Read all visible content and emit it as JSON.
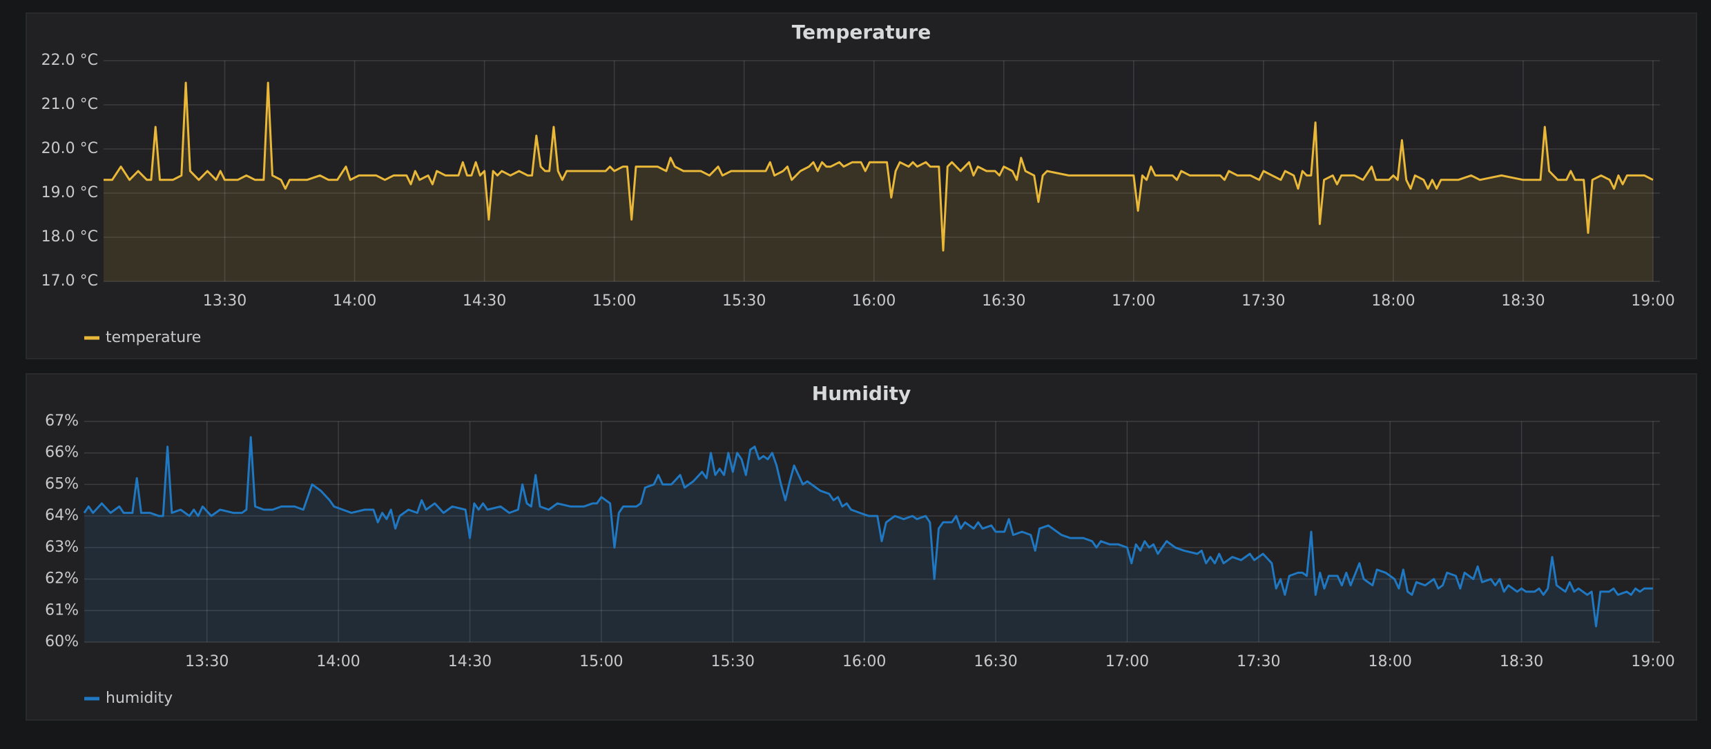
{
  "chart_data": [
    {
      "type": "line",
      "title": "Temperature",
      "grid": true,
      "fill": true,
      "legend": "bottom-left",
      "xlim": [
        "13:02",
        "19:00"
      ],
      "xticks": [
        "13:30",
        "14:00",
        "14:30",
        "15:00",
        "15:30",
        "16:00",
        "16:30",
        "17:00",
        "17:30",
        "18:00",
        "18:30",
        "19:00"
      ],
      "ylim": [
        17,
        22
      ],
      "yticks": [
        {
          "value": 17,
          "label": "17.0 °C"
        },
        {
          "value": 18,
          "label": "18.0 °C"
        },
        {
          "value": 19,
          "label": "19.0 °C"
        },
        {
          "value": 20,
          "label": "20.0 °C"
        },
        {
          "value": 21,
          "label": "21.0 °C"
        },
        {
          "value": 22,
          "label": "22.0 °C"
        }
      ],
      "x": [
        "13:02",
        "13:04",
        "13:06",
        "13:08",
        "13:10",
        "13:12",
        "13:13",
        "13:14",
        "13:15",
        "13:18",
        "13:20",
        "13:21",
        "13:22",
        "13:24",
        "13:26",
        "13:28",
        "13:29",
        "13:30",
        "13:33",
        "13:35",
        "13:37",
        "13:39",
        "13:40",
        "13:41",
        "13:43",
        "13:44",
        "13:45",
        "13:49",
        "13:52",
        "13:54",
        "13:56",
        "13:58",
        "13:59",
        "14:01",
        "14:05",
        "14:07",
        "14:09",
        "14:12",
        "14:13",
        "14:14",
        "14:15",
        "14:17",
        "14:18",
        "14:19",
        "14:21",
        "14:24",
        "14:25",
        "14:26",
        "14:27",
        "14:28",
        "14:29",
        "14:30",
        "14:31",
        "14:32",
        "14:33",
        "14:34",
        "14:36",
        "14:38",
        "14:40",
        "14:41",
        "14:42",
        "14:43",
        "14:44",
        "14:45",
        "14:46",
        "14:47",
        "14:48",
        "14:49",
        "14:52",
        "14:55",
        "14:58",
        "14:59",
        "15:00",
        "15:02",
        "15:03",
        "15:04",
        "15:05",
        "15:10",
        "15:12",
        "15:13",
        "15:14",
        "15:16",
        "15:20",
        "15:22",
        "15:24",
        "15:25",
        "15:27",
        "15:30",
        "15:35",
        "15:36",
        "15:37",
        "15:39",
        "15:40",
        "15:41",
        "15:43",
        "15:45",
        "15:46",
        "15:47",
        "15:48",
        "15:49",
        "15:50",
        "15:52",
        "15:53",
        "15:55",
        "15:57",
        "15:58",
        "15:59",
        "16:03",
        "16:04",
        "16:05",
        "16:06",
        "16:08",
        "16:09",
        "16:10",
        "16:12",
        "16:13",
        "16:15",
        "16:16",
        "16:17",
        "16:18",
        "16:20",
        "16:22",
        "16:23",
        "16:24",
        "16:26",
        "16:28",
        "16:29",
        "16:30",
        "16:32",
        "16:33",
        "16:34",
        "16:35",
        "16:37",
        "16:38",
        "16:39",
        "16:40",
        "16:45",
        "16:50",
        "16:58",
        "17:00",
        "17:01",
        "17:02",
        "17:03",
        "17:04",
        "17:05",
        "17:09",
        "17:10",
        "17:11",
        "17:13",
        "17:20",
        "17:21",
        "17:22",
        "17:24",
        "17:27",
        "17:29",
        "17:30",
        "17:32",
        "17:34",
        "17:35",
        "17:37",
        "17:38",
        "17:39",
        "17:40",
        "17:41",
        "17:42",
        "17:43",
        "17:44",
        "17:46",
        "17:47",
        "17:48",
        "17:51",
        "17:53",
        "17:55",
        "17:56",
        "17:59",
        "18:00",
        "18:01",
        "18:02",
        "18:03",
        "18:04",
        "18:05",
        "18:07",
        "18:08",
        "18:09",
        "18:10",
        "18:11",
        "18:15",
        "18:18",
        "18:20",
        "18:25",
        "18:30",
        "18:34",
        "18:35",
        "18:36",
        "18:38",
        "18:40",
        "18:41",
        "18:42",
        "18:44",
        "18:45",
        "18:46",
        "18:48",
        "18:50",
        "18:51",
        "18:52",
        "18:53",
        "18:54",
        "18:56",
        "18:58",
        "19:00"
      ],
      "series": [
        {
          "name": "temperature",
          "color": "#eab839",
          "values": [
            19.3,
            19.3,
            19.6,
            19.3,
            19.5,
            19.3,
            19.3,
            20.5,
            19.3,
            19.3,
            19.4,
            21.5,
            19.5,
            19.3,
            19.5,
            19.3,
            19.5,
            19.3,
            19.3,
            19.4,
            19.3,
            19.3,
            21.5,
            19.4,
            19.3,
            19.1,
            19.3,
            19.3,
            19.4,
            19.3,
            19.3,
            19.6,
            19.3,
            19.4,
            19.4,
            19.3,
            19.4,
            19.4,
            19.2,
            19.5,
            19.3,
            19.4,
            19.2,
            19.5,
            19.4,
            19.4,
            19.7,
            19.4,
            19.4,
            19.7,
            19.4,
            19.5,
            18.4,
            19.5,
            19.4,
            19.5,
            19.4,
            19.5,
            19.4,
            19.4,
            20.3,
            19.6,
            19.5,
            19.5,
            20.5,
            19.5,
            19.3,
            19.5,
            19.5,
            19.5,
            19.5,
            19.6,
            19.5,
            19.6,
            19.6,
            18.4,
            19.6,
            19.6,
            19.5,
            19.8,
            19.6,
            19.5,
            19.5,
            19.4,
            19.6,
            19.4,
            19.5,
            19.5,
            19.5,
            19.7,
            19.4,
            19.5,
            19.6,
            19.3,
            19.5,
            19.6,
            19.7,
            19.5,
            19.7,
            19.6,
            19.6,
            19.7,
            19.6,
            19.7,
            19.7,
            19.5,
            19.7,
            19.7,
            18.9,
            19.5,
            19.7,
            19.6,
            19.7,
            19.6,
            19.7,
            19.6,
            19.6,
            17.7,
            19.6,
            19.7,
            19.5,
            19.7,
            19.4,
            19.6,
            19.5,
            19.5,
            19.4,
            19.6,
            19.5,
            19.3,
            19.8,
            19.5,
            19.4,
            18.8,
            19.4,
            19.5,
            19.4,
            19.4,
            19.4,
            19.4,
            18.6,
            19.4,
            19.3,
            19.6,
            19.4,
            19.4,
            19.3,
            19.5,
            19.4,
            19.4,
            19.3,
            19.5,
            19.4,
            19.4,
            19.3,
            19.5,
            19.4,
            19.3,
            19.5,
            19.4,
            19.1,
            19.5,
            19.4,
            19.4,
            20.6,
            18.3,
            19.3,
            19.4,
            19.2,
            19.4,
            19.4,
            19.3,
            19.6,
            19.3,
            19.3,
            19.4,
            19.3,
            20.2,
            19.3,
            19.1,
            19.4,
            19.3,
            19.1,
            19.3,
            19.1,
            19.3,
            19.3,
            19.4,
            19.3,
            19.4,
            19.3,
            19.3,
            20.5,
            19.5,
            19.3,
            19.3,
            19.5,
            19.3,
            19.3,
            18.1,
            19.3,
            19.4,
            19.3,
            19.1,
            19.4,
            19.2,
            19.4,
            19.4,
            19.4,
            19.3
          ]
        }
      ]
    },
    {
      "type": "line",
      "title": "Humidity",
      "grid": true,
      "fill": true,
      "legend": "bottom-left",
      "xlim": [
        "13:02",
        "19:00"
      ],
      "xticks": [
        "13:30",
        "14:00",
        "14:30",
        "15:00",
        "15:30",
        "16:00",
        "16:30",
        "17:00",
        "17:30",
        "18:00",
        "18:30",
        "19:00"
      ],
      "ylim": [
        60,
        67
      ],
      "yticks": [
        {
          "value": 60,
          "label": "60%"
        },
        {
          "value": 61,
          "label": "61%"
        },
        {
          "value": 62,
          "label": "62%"
        },
        {
          "value": 63,
          "label": "63%"
        },
        {
          "value": 64,
          "label": "64%"
        },
        {
          "value": 65,
          "label": "65%"
        },
        {
          "value": 66,
          "label": "66%"
        },
        {
          "value": 67,
          "label": "67%"
        }
      ],
      "x": [
        "13:02",
        "13:03",
        "13:04",
        "13:06",
        "13:08",
        "13:10",
        "13:11",
        "13:13",
        "13:14",
        "13:15",
        "13:17",
        "13:19",
        "13:20",
        "13:21",
        "13:22",
        "13:24",
        "13:26",
        "13:27",
        "13:28",
        "13:29",
        "13:31",
        "13:33",
        "13:36",
        "13:38",
        "13:39",
        "13:40",
        "13:41",
        "13:43",
        "13:45",
        "13:47",
        "13:50",
        "13:52",
        "13:54",
        "13:56",
        "13:58",
        "13:59",
        "14:03",
        "14:06",
        "14:08",
        "14:09",
        "14:10",
        "14:11",
        "14:12",
        "14:13",
        "14:14",
        "14:16",
        "14:18",
        "14:19",
        "14:20",
        "14:22",
        "14:24",
        "14:26",
        "14:29",
        "14:30",
        "14:31",
        "14:32",
        "14:33",
        "14:34",
        "14:37",
        "14:39",
        "14:41",
        "14:42",
        "14:43",
        "14:44",
        "14:45",
        "14:46",
        "14:48",
        "14:50",
        "14:53",
        "14:56",
        "14:58",
        "14:59",
        "15:00",
        "15:02",
        "15:03",
        "15:04",
        "15:05",
        "15:08",
        "15:09",
        "15:10",
        "15:12",
        "15:13",
        "15:14",
        "15:16",
        "15:18",
        "15:19",
        "15:21",
        "15:23",
        "15:24",
        "15:25",
        "15:26",
        "15:27",
        "15:28",
        "15:29",
        "15:30",
        "15:31",
        "15:32",
        "15:33",
        "15:34",
        "15:35",
        "15:36",
        "15:37",
        "15:38",
        "15:39",
        "15:40",
        "15:41",
        "15:42",
        "15:43",
        "15:44",
        "15:45",
        "15:46",
        "15:47",
        "15:49",
        "15:50",
        "15:52",
        "15:53",
        "15:54",
        "15:55",
        "15:56",
        "15:57",
        "15:59",
        "16:01",
        "16:03",
        "16:04",
        "16:05",
        "16:07",
        "16:09",
        "16:11",
        "16:12",
        "16:14",
        "16:15",
        "16:16",
        "16:17",
        "16:18",
        "16:20",
        "16:21",
        "16:22",
        "16:23",
        "16:25",
        "16:26",
        "16:27",
        "16:29",
        "16:30",
        "16:32",
        "16:33",
        "16:34",
        "16:36",
        "16:38",
        "16:39",
        "16:40",
        "16:42",
        "16:44",
        "16:45",
        "16:47",
        "16:50",
        "16:52",
        "16:53",
        "16:54",
        "16:56",
        "16:58",
        "17:00",
        "17:01",
        "17:02",
        "17:03",
        "17:04",
        "17:05",
        "17:06",
        "17:07",
        "17:08",
        "17:09",
        "17:11",
        "17:13",
        "17:16",
        "17:17",
        "17:18",
        "17:19",
        "17:20",
        "17:21",
        "17:22",
        "17:24",
        "17:26",
        "17:28",
        "17:29",
        "17:31",
        "17:33",
        "17:34",
        "17:35",
        "17:36",
        "17:37",
        "17:39",
        "17:40",
        "17:41",
        "17:42",
        "17:43",
        "17:44",
        "17:45",
        "17:46",
        "17:48",
        "17:49",
        "17:50",
        "17:51",
        "17:53",
        "17:54",
        "17:56",
        "17:57",
        "17:59",
        "18:01",
        "18:02",
        "18:03",
        "18:04",
        "18:05",
        "18:06",
        "18:08",
        "18:10",
        "18:11",
        "18:12",
        "18:13",
        "18:15",
        "18:16",
        "18:17",
        "18:19",
        "18:20",
        "18:21",
        "18:23",
        "18:24",
        "18:25",
        "18:26",
        "18:27",
        "18:29",
        "18:30",
        "18:31",
        "18:33",
        "18:34",
        "18:35",
        "18:36",
        "18:37",
        "18:38",
        "18:39",
        "18:40",
        "18:41",
        "18:42",
        "18:43",
        "18:45",
        "18:46",
        "18:47",
        "18:48",
        "18:50",
        "18:51",
        "18:52",
        "18:54",
        "18:55",
        "18:56",
        "18:57",
        "18:58",
        "19:00"
      ],
      "series": [
        {
          "name": "humidity",
          "color": "#1f78c1",
          "values": [
            64.1,
            64.3,
            64.1,
            64.4,
            64.1,
            64.3,
            64.1,
            64.1,
            65.2,
            64.1,
            64.1,
            64.0,
            64.0,
            66.2,
            64.1,
            64.2,
            64.0,
            64.2,
            64.0,
            64.3,
            64.0,
            64.2,
            64.1,
            64.1,
            64.2,
            66.5,
            64.3,
            64.2,
            64.2,
            64.3,
            64.3,
            64.2,
            65.0,
            64.8,
            64.5,
            64.3,
            64.1,
            64.2,
            64.2,
            63.8,
            64.1,
            63.9,
            64.2,
            63.6,
            64.0,
            64.2,
            64.1,
            64.5,
            64.2,
            64.4,
            64.1,
            64.3,
            64.2,
            63.3,
            64.4,
            64.2,
            64.4,
            64.2,
            64.3,
            64.1,
            64.2,
            65.0,
            64.4,
            64.3,
            65.3,
            64.3,
            64.2,
            64.4,
            64.3,
            64.3,
            64.4,
            64.4,
            64.6,
            64.4,
            63.0,
            64.1,
            64.3,
            64.3,
            64.4,
            64.9,
            65.0,
            65.3,
            65.0,
            65.0,
            65.3,
            64.9,
            65.1,
            65.4,
            65.2,
            66.0,
            65.3,
            65.5,
            65.3,
            66.0,
            65.4,
            66.0,
            65.8,
            65.3,
            66.1,
            66.2,
            65.8,
            65.9,
            65.8,
            66.0,
            65.6,
            65.0,
            64.5,
            65.1,
            65.6,
            65.3,
            65.0,
            65.1,
            64.9,
            64.8,
            64.7,
            64.5,
            64.6,
            64.3,
            64.4,
            64.2,
            64.1,
            64.0,
            64.0,
            63.2,
            63.8,
            64.0,
            63.9,
            64.0,
            63.9,
            64.0,
            63.8,
            62.0,
            63.6,
            63.8,
            63.8,
            64.0,
            63.6,
            63.8,
            63.6,
            63.8,
            63.6,
            63.7,
            63.5,
            63.5,
            63.9,
            63.4,
            63.5,
            63.4,
            62.9,
            63.6,
            63.7,
            63.5,
            63.4,
            63.3,
            63.3,
            63.2,
            63.0,
            63.2,
            63.1,
            63.1,
            63.0,
            62.5,
            63.1,
            62.9,
            63.2,
            63.0,
            63.1,
            62.8,
            63.0,
            63.2,
            63.0,
            62.9,
            62.8,
            62.9,
            62.5,
            62.7,
            62.5,
            62.8,
            62.5,
            62.7,
            62.6,
            62.8,
            62.6,
            62.8,
            62.5,
            61.7,
            62.0,
            61.5,
            62.1,
            62.2,
            62.2,
            62.1,
            63.5,
            61.5,
            62.2,
            61.7,
            62.1,
            62.1,
            61.8,
            62.2,
            61.8,
            62.5,
            62.0,
            61.8,
            62.3,
            62.2,
            62.0,
            61.7,
            62.3,
            61.6,
            61.5,
            61.9,
            61.8,
            62.0,
            61.7,
            61.8,
            62.2,
            62.1,
            61.7,
            62.2,
            62.0,
            62.4,
            61.9,
            62.0,
            61.8,
            62.0,
            61.6,
            61.8,
            61.6,
            61.7,
            61.6,
            61.6,
            61.7,
            61.5,
            61.7,
            62.7,
            61.8,
            61.7,
            61.6,
            61.9,
            61.6,
            61.7,
            61.5,
            61.6,
            60.5,
            61.6,
            61.6,
            61.7,
            61.5,
            61.6,
            61.5,
            61.7,
            61.6,
            61.7,
            61.7
          ]
        }
      ]
    }
  ]
}
